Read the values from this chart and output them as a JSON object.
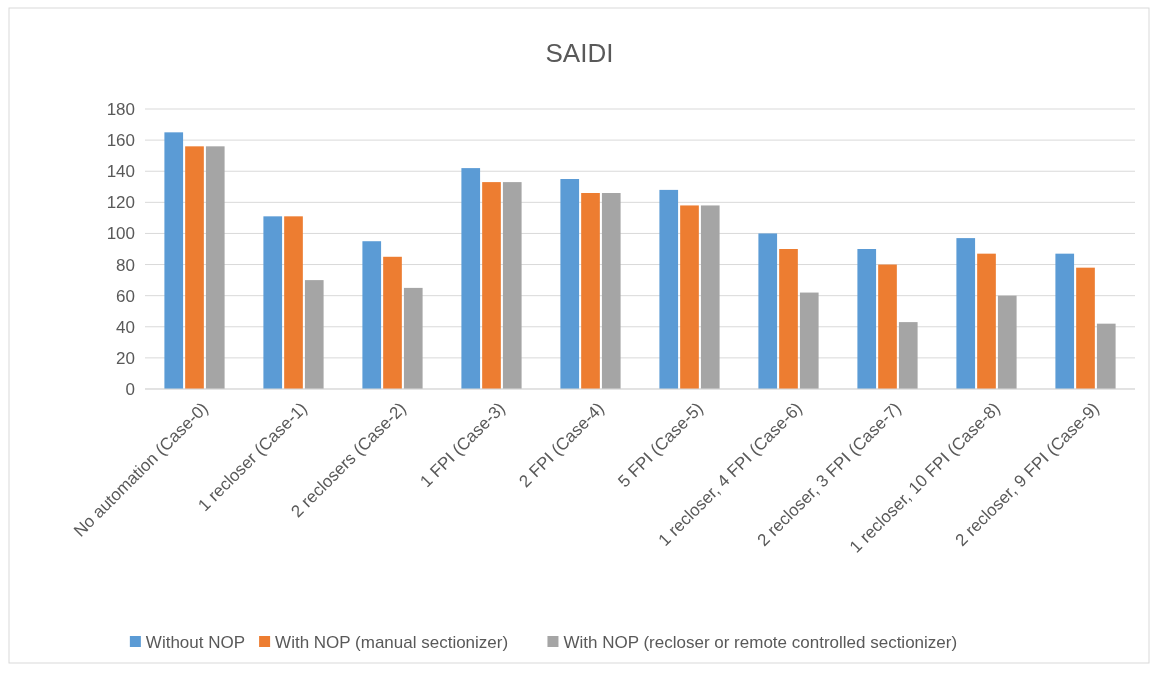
{
  "chart_data": {
    "type": "bar",
    "title": "SAIDI",
    "categories": [
      "No automation (Case-0)",
      "1 recloser (Case-1)",
      "2 reclosers (Case-2)",
      "1 FPI (Case-3)",
      "2 FPI (Case-4)",
      "5 FPI (Case-5)",
      "1 recloser, 4 FPI (Case-6)",
      "2 recloser, 3 FPI (Case-7)",
      "1 recloser, 10 FPI (Case-8)",
      "2 recloser, 9 FPI (Case-9)"
    ],
    "series": [
      {
        "name": "Without NOP",
        "color": "#5b9bd5",
        "values": [
          165,
          111,
          95,
          142,
          135,
          128,
          100,
          90,
          97,
          87
        ]
      },
      {
        "name": "With NOP (manual sectionizer)",
        "color": "#ed7d31",
        "values": [
          156,
          111,
          85,
          133,
          126,
          118,
          90,
          80,
          87,
          78
        ]
      },
      {
        "name": "With NOP (recloser or remote controlled sectionizer)",
        "color": "#a5a5a5",
        "values": [
          156,
          70,
          65,
          133,
          126,
          118,
          62,
          43,
          60,
          42
        ]
      }
    ],
    "ylim": [
      0,
      180
    ],
    "yticks": [
      0,
      20,
      40,
      60,
      80,
      100,
      120,
      140,
      160,
      180
    ],
    "grid": "y",
    "legend": "bottom"
  }
}
